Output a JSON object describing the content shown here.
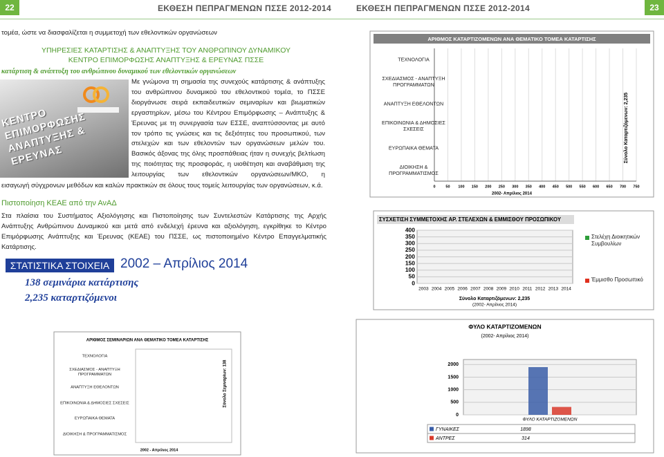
{
  "header": {
    "left_page_number": "22",
    "left_title": "ΕΚΘΕΣΗ ΠΕΠΡΑΓΜΕΝΩΝ ΠΣΣΕ 2012-2014",
    "right_title": "ΕΚΘΕΣΗ ΠΕΠΡΑΓΜΕΝΩΝ ΠΣΣΕ 2012-2014",
    "right_page_number": "23"
  },
  "intro_line": "τομέα, ώστε να διασφαλίζεται η συμμετοχή των εθελοντικών οργανώσεων",
  "section": {
    "heading_line_1": "ΥΠΗΡΕΣΙΕΣ ΚΑΤΑΡΤΙΣΗΣ & ΑΝΑΠΤΥΞΗΣ ΤΟΥ ΑΝΘΡΩΠΙΝΟΥ ΔΥΝΑΜΙΚΟΥ",
    "heading_line_2": "ΚΕΝΤΡΟ ΕΠΙΜΟΡΦΩΣΗΣ ΑΝΑΠΤΥΞΗΣ & ΕΡΕΥΝΑΣ ΠΣΣΕ",
    "tagline": "κατάρτιση & ανάπτυξη του ανθρώπινου δυναμικού των εθελοντικών οργανώσεων",
    "image_text": "ΚΕΝΤΡΟ ΕΠΙΜΟΡΦΩΣΗΣ ΑΝΑΠΤΥΞΗΣ & ΕΡΕΥΝΑΣ",
    "paragraph": "Με γνώμονα τη σημασία της συνεχούς κατάρτισης & ανάπτυξης του ανθρώπινου δυναμικού του εθελοντικού τομέα, το ΠΣΣΕ διοργάνωσε σειρά εκπαιδευτικών σεμιναρίων και βιωματικών εργαστηρίων, μέσω του Κέντρου Επιμόρφωσης – Ανάπτυξης & Έρευνας με τη συνεργασία των ΕΣΣΕ, αναπτύσσοντας με αυτό τον τρόπο τις γνώσεις και τις δεξιότητες του προσωπικού, των στελεχών και των εθελοντών των οργανώσεων μελών του. Βασικός άξονας της όλης προσπάθειας ήταν η συνεχής βελτίωση της ποιότητας της προσφοράς, η υιοθέτηση και αναβάθμιση της λειτουργίας των εθελοντικών οργανώσεων/ΜΚΟ, η",
    "paragraph_end": "εισαγωγή σύγχρονων μεθόδων και καλών πρακτικών σε όλους τους τομείς λειτουργίας των οργανώσεων, κ.ά."
  },
  "certification": {
    "heading": "Πιστοποίηση ΚΕΑΕ από την ΑνΑΔ",
    "paragraph": "Στα πλαίσια του Συστήματος Αξιολόγησης και Πιστοποίησης των Συντελεστών Κατάρτισης της Αρχής Ανάπτυξης Ανθρώπινου Δυναμικού και μετά από ενδελεχή έρευνα και αξιολόγηση, εγκρίθηκε το Κέντρο Επιμόρφωσης Ανάπτυξης και Έρευνας (ΚΕΑΕ) του ΠΣΣΕ, ως πιστοποιημένο Κέντρο Επαγγελματικής Κατάρτισης."
  },
  "statistics": {
    "label": "ΣΤΑΤΙΣΤΙΚΑ ΣΤΟΙΧΕΙΑ",
    "period": "2002 – Απρίλιος 2014",
    "seminars": "138 σεμινάρια κατάρτισης",
    "trainees": "2,235 καταρτιζόμενοι"
  },
  "charts": [
    {
      "type": "bar",
      "orientation": "horizontal",
      "title": "ΑΡΙΘΜΟΣ ΚΑΤΑΡΤΙΖΟΜΕΝΩΝ ΑΝΑ ΘΕΜΑΤΙΚΟ ΤΟΜΕΑ ΚΑΤΑΡΤΙΣΗΣ",
      "categories": [
        "ΤΕΧΝΟΛΟΓΙΑ",
        "ΣΧΕΔΙΑΣΜΟΣ - ΑΝΑΠΤΥΞΗ ΠΡΟΓΡΑΜΜΑΤΩΝ",
        "ΑΝΑΠΤΥΞΗ ΕΘΕΛΟΝΤΩΝ",
        "ΕΠΙΚΟΙΝΩΝΙΑ & ΔΗΜΟΣΙΕΣ ΣΧΕΣΕΙΣ",
        "ΕΥΡΩΠΑΙΚΑ ΘΕΜΑΤΑ",
        "ΔΙΟΙΚΗΣΗ & ΠΡΟΓΡΑΜΜΑΤΙΣΜΟΣ"
      ],
      "xlim": [
        0,
        750
      ],
      "xticks": [
        0,
        50,
        100,
        150,
        200,
        250,
        300,
        350,
        400,
        450,
        500,
        550,
        600,
        650,
        700,
        750
      ],
      "grid": true,
      "annotation": "Σύνολο Καταρτιζόμενων: 2,235",
      "xlabel": "2002- Απρίλιος 2014"
    },
    {
      "type": "bar",
      "title": "ΣΥΣΧΕΤΙΣΗ ΣΥΜΜΕΤΟΧΗΣ ΑΡ. ΣΤΕΛΕΧΩΝ & ΕΜΜΙΣΘΟΥ ΠΡΟΣΩΠΙΚΟΥ",
      "categories": [
        "2003",
        "2004",
        "2005",
        "2006",
        "2007",
        "2008",
        "2009",
        "2010",
        "2011",
        "2012",
        "2013",
        "2014"
      ],
      "ylim": [
        0,
        400
      ],
      "yticks": [
        0,
        50,
        100,
        150,
        200,
        250,
        300,
        350,
        400
      ],
      "grid": true,
      "series": [
        {
          "name": "Στελέχη Διοικητικών Συμβουλίων",
          "color": "#2e9e3a"
        },
        {
          "name": "Έμμισθο Προσωπικό",
          "color": "#e0301e"
        }
      ],
      "annotation": "Σύνολο Καταρτιζόμενων: 2,235",
      "subtitle": "(2002- Απρίλιος 2014)"
    },
    {
      "type": "bar",
      "title": "ΦΥΛΟ ΚΑΤΑΡΤΙΖΟΜΕΝΩΝ",
      "subtitle": "(2002- Απρίλιος 2014)",
      "categories": [
        "ΦΥΛΟ ΚΑΤΑΡΤΙΖΟΜΕΝΩΝ"
      ],
      "ylim": [
        0,
        2200
      ],
      "yticks": [
        0,
        500,
        1000,
        1500,
        2000
      ],
      "grid": true,
      "series": [
        {
          "name": "ΓΥΝΑΙΚΕΣ",
          "color": "#3b5ea8",
          "values": [
            1898
          ]
        },
        {
          "name": "ΑΝΤΡΕΣ",
          "color": "#d93a2b",
          "values": [
            314
          ]
        }
      ]
    },
    {
      "type": "bar",
      "orientation": "horizontal",
      "title": "ΑΡΙΘΜΟΣ ΣΕΜΙΝΑΡΙΩΝ ΑΝΑ ΘΕΜΑΤΙΚΟ ΤΟΜΕΑ ΚΑΤΑΡΤΙΣΗΣ",
      "categories": [
        "ΤΕΧΝΟΛΟΓΙΑ",
        "ΣΧΕΔΙΑΣΜΟΣ - ΑΝΑΠΤΥΞΗ ΠΡΟΓΡΑΜΜΑΤΩΝ",
        "ΑΝΑΠΤΥΞΗ ΕΘΕΛΟΝΤΩΝ",
        "ΕΠΙΚΟΙΝΩΝΙΑ & ΔΗΜΟΣΙΕΣ ΣΧΕΣΕΙΣ",
        "ΕΥΡΩΠΑΙΚΑ ΘΕΜΑΤΑ",
        "ΔΙΟΙΚΗΣΗ & ΠΡΟΓΡΑΜΜΑΤΙΣΜΟΣ"
      ],
      "annotation": "Σύνολο Σεμιναρίων: 138",
      "xlabel": "2002 - Απρίλιος 2014"
    }
  ]
}
